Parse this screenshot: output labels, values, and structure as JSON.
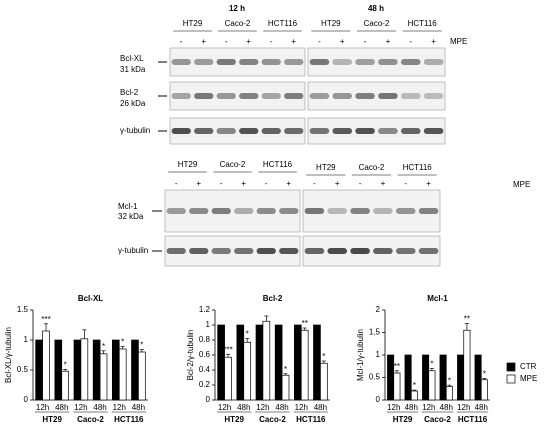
{
  "blots": {
    "time_labels": [
      "12 h",
      "48 h"
    ],
    "cell_lines": [
      "HT29",
      "Caco-2",
      "HCT116"
    ],
    "signs": [
      "-",
      "+"
    ],
    "treatment": "MPE",
    "upper_proteins": [
      {
        "name": "Bcl-XL",
        "size": "31 kDa"
      },
      {
        "name": "Bcl-2",
        "size": "26 kDa"
      },
      {
        "name": "γ-tubulin"
      }
    ],
    "lower_proteins": [
      {
        "name": "Mcl-1",
        "size": "32 kDa"
      },
      {
        "name": "γ-tubulin"
      }
    ]
  },
  "chart_data": [
    {
      "type": "bar",
      "title": "Bcl-XL",
      "y_label": "Bcl-XL/γ-tubulin",
      "groups": [
        "HT29",
        "Caco-2",
        "HCT116"
      ],
      "categories": [
        "12h",
        "48h",
        "12h",
        "48h",
        "12h",
        "48h"
      ],
      "series": [
        {
          "name": "CTR",
          "color": "#000000",
          "values": [
            1,
            1,
            1,
            1,
            1,
            1
          ]
        },
        {
          "name": "MPE",
          "color": "#ffffff",
          "values": [
            1.15,
            0.48,
            1.02,
            0.77,
            0.85,
            0.8
          ],
          "errors": [
            0.12,
            0.03,
            0.15,
            0.05,
            0.04,
            0.04
          ],
          "significance": [
            "***",
            "*",
            null,
            "*",
            "*",
            "*"
          ]
        }
      ],
      "ylim": [
        0,
        1.5
      ],
      "yticks": [
        0,
        0.5,
        1,
        1.5
      ],
      "legend": false
    },
    {
      "type": "bar",
      "title": "Bcl-2",
      "y_label": "Bcl-2/γ-tubulin",
      "groups": [
        "HT29",
        "Caco-2",
        "HCT116"
      ],
      "categories": [
        "12h",
        "48h",
        "12h",
        "48h",
        "12h",
        "48h"
      ],
      "series": [
        {
          "name": "CTR",
          "color": "#000000",
          "values": [
            1,
            1,
            1,
            1,
            1,
            1
          ]
        },
        {
          "name": "MPE",
          "color": "#ffffff",
          "values": [
            0.57,
            0.77,
            1.05,
            0.33,
            0.93,
            0.49
          ],
          "errors": [
            0.04,
            0.05,
            0.07,
            0.02,
            0.03,
            0.03
          ],
          "significance": [
            "***",
            "*",
            null,
            "*",
            "**",
            "*"
          ]
        }
      ],
      "ylim": [
        0,
        1.2
      ],
      "yticks": [
        0,
        0.2,
        0.4,
        0.6,
        0.8,
        1,
        1.2
      ],
      "legend": false
    },
    {
      "type": "bar",
      "title": "Mcl-1",
      "y_label": "Mcl-1/γ-tubulin",
      "groups": [
        "HT29",
        "Caco-2",
        "HCT116"
      ],
      "categories": [
        "12h",
        "48h",
        "12h",
        "48h",
        "12h",
        "48h"
      ],
      "series": [
        {
          "name": "CTR",
          "color": "#000000",
          "values": [
            1,
            1,
            1,
            1,
            1,
            1
          ]
        },
        {
          "name": "MPE",
          "color": "#ffffff",
          "values": [
            0.6,
            0.2,
            0.65,
            0.3,
            1.55,
            0.45
          ],
          "errors": [
            0.05,
            0.02,
            0.05,
            0.03,
            0.15,
            0.03
          ],
          "significance": [
            "**",
            "*",
            "*",
            "*",
            "**",
            "*"
          ]
        }
      ],
      "ylim": [
        0,
        2
      ],
      "yticks": [
        0,
        0.5,
        1,
        1.5,
        2
      ],
      "legend": true
    }
  ]
}
